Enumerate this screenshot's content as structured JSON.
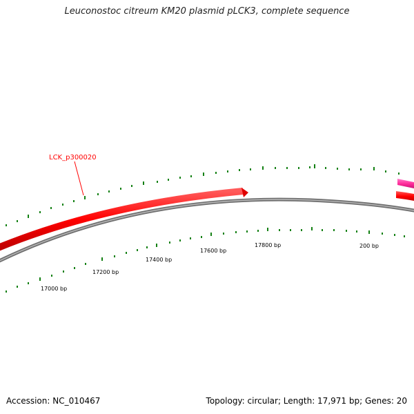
{
  "title": "Leuconostoc citreum KM20 plasmid pLCK3, complete sequence",
  "footer": {
    "accession": "Accession: NC_010467",
    "stats": "Topology: circular; Length: 17,971 bp; Genes: 20"
  },
  "genes": [
    {
      "label": "LCK_p300020",
      "color": "#ff0000"
    }
  ],
  "tick_labels": [
    "17000 bp",
    "17200 bp",
    "17400 bp",
    "17600 bp",
    "17800 bp",
    "200 bp"
  ],
  "colors": {
    "backbone": "#8c8c8c",
    "forward_gene": "#ff0000",
    "reverse_gene": "#ff2a9a",
    "tick": "#138013"
  }
}
